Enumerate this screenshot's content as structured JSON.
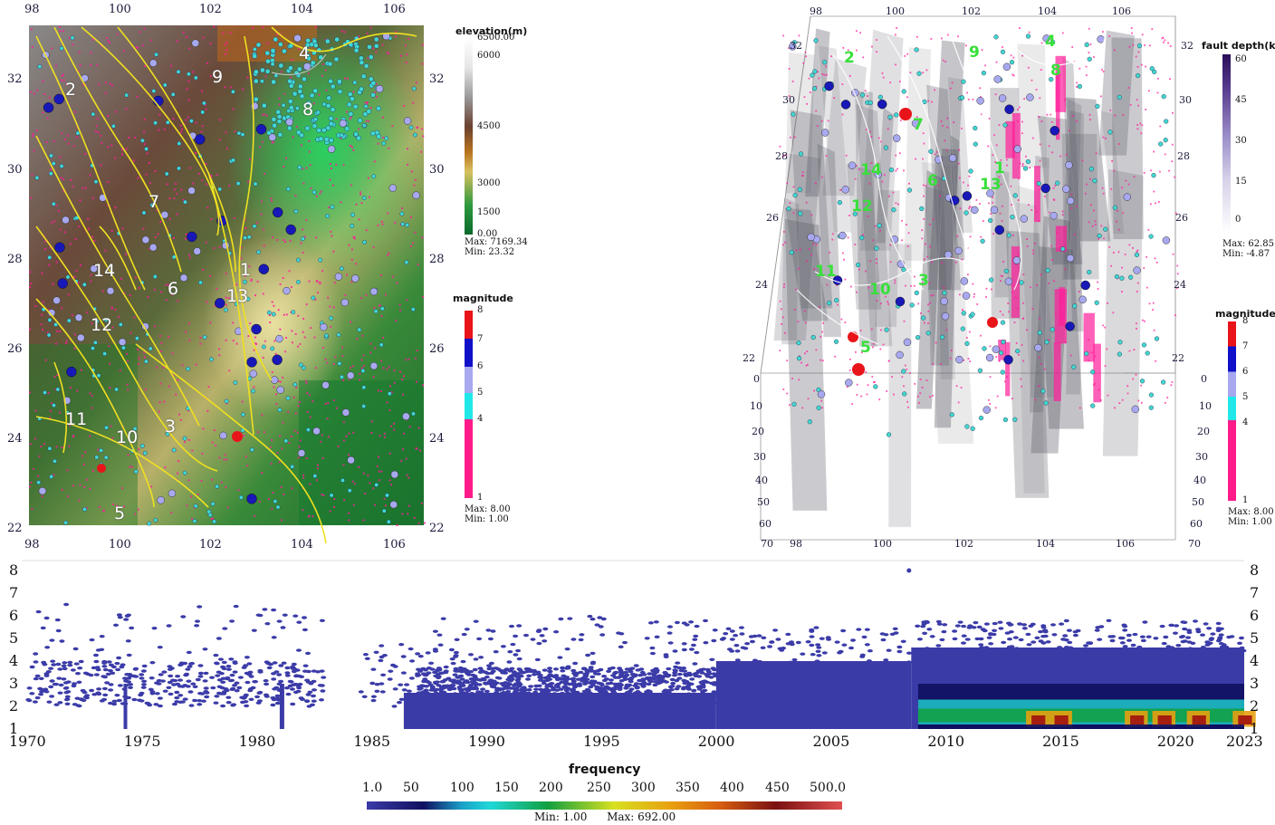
{
  "map2d": {
    "lon_top": [
      "98",
      "100",
      "102",
      "104",
      "106"
    ],
    "lon_bottom": [
      "98",
      "100",
      "102",
      "104",
      "106"
    ],
    "lat_left": [
      "32",
      "30",
      "28",
      "26",
      "24",
      "22"
    ],
    "lat_right": [
      "32",
      "30",
      "28",
      "26",
      "24",
      "22"
    ],
    "faults": [
      {
        "id": "4",
        "label": "4"
      },
      {
        "id": "9",
        "label": "9"
      },
      {
        "id": "2",
        "label": "2"
      },
      {
        "id": "8",
        "label": "8"
      },
      {
        "id": "7",
        "label": "7"
      },
      {
        "id": "14",
        "label": "14"
      },
      {
        "id": "1",
        "label": "1"
      },
      {
        "id": "6",
        "label": "6"
      },
      {
        "id": "13",
        "label": "13"
      },
      {
        "id": "12",
        "label": "12"
      },
      {
        "id": "11",
        "label": "11"
      },
      {
        "id": "10",
        "label": "10"
      },
      {
        "id": "3",
        "label": "3"
      },
      {
        "id": "5",
        "label": "5"
      }
    ]
  },
  "elevation_bar": {
    "title": "elevation(m)",
    "labels": [
      "6500.00",
      "6000",
      "4500",
      "3000",
      "1500",
      "0.00"
    ],
    "max": "Max: 7169.34",
    "min": "Min: 23.32",
    "colors": [
      "#ffffff",
      "#d8d8d8",
      "#7a5a3e",
      "#b8731e",
      "#d8c060",
      "#2e9a3e",
      "#0a6a2a"
    ]
  },
  "magnitude_bar_left": {
    "title": "magnitude",
    "labels": [
      "8",
      "7",
      "6",
      "5",
      "4",
      "1"
    ],
    "max": "Max: 8.00",
    "min": "Min: 1.00",
    "colors": [
      "#e8141a",
      "#1010c8",
      "#a8a8f0",
      "#20e8e8",
      "#ff1c8a"
    ]
  },
  "map3d": {
    "lon_top": [
      "98",
      "100",
      "102",
      "104",
      "106"
    ],
    "lon_bottom": [
      "98",
      "100",
      "102",
      "104",
      "106"
    ],
    "lat_left": [
      "32",
      "30",
      "28",
      "26",
      "24",
      "22"
    ],
    "lat_right": [
      "32",
      "30",
      "28",
      "26",
      "24",
      "22"
    ],
    "depth_left": [
      "0",
      "10",
      "20",
      "30",
      "40",
      "50",
      "60",
      "70"
    ],
    "depth_right": [
      "0",
      "10",
      "20",
      "30",
      "40",
      "50",
      "60",
      "70"
    ],
    "faults": [
      "4",
      "9",
      "2",
      "8",
      "7",
      "14",
      "1",
      "6",
      "13",
      "12",
      "11",
      "10",
      "3",
      "5"
    ]
  },
  "fault_depth_bar": {
    "title": "fault depth(km)",
    "labels": [
      "60",
      "45",
      "30",
      "15",
      "0"
    ],
    "max": "Max: 62.85",
    "min": "Min: -4.87",
    "colors": [
      "#3a1466",
      "#8a7ab8",
      "#d8d2ea",
      "#ffffff"
    ]
  },
  "magnitude_bar_right": {
    "title": "magnitude",
    "labels": [
      "8",
      "7",
      "6",
      "5",
      "4",
      "1"
    ],
    "max": "Max: 8.00",
    "min": "Min: 1.00",
    "colors": [
      "#e8141a",
      "#1010c8",
      "#a8a8f0",
      "#20e8e8",
      "#ff1c8a"
    ]
  },
  "timeline": {
    "x_ticks": [
      "1970",
      "1975",
      "1980",
      "1985",
      "1990",
      "1995",
      "2000",
      "2005",
      "2010",
      "2015",
      "2020",
      "2023"
    ],
    "y_ticks": [
      "8",
      "7",
      "6",
      "5",
      "4",
      "3",
      "2",
      "1"
    ],
    "xlim": [
      1970,
      2023
    ],
    "ylim": [
      1,
      8
    ]
  },
  "frequency_bar": {
    "title": "frequency",
    "labels": [
      "1.0",
      "50",
      "100",
      "150",
      "200",
      "250",
      "300",
      "350",
      "400",
      "450",
      "500.0"
    ],
    "min": "Min: 1.00",
    "max": "Max: 692.00",
    "colors": [
      "#3b3ba8",
      "#101060",
      "#20c8c8",
      "#10a040",
      "#e8e820",
      "#e87010",
      "#7a1010",
      "#e05050"
    ]
  }
}
